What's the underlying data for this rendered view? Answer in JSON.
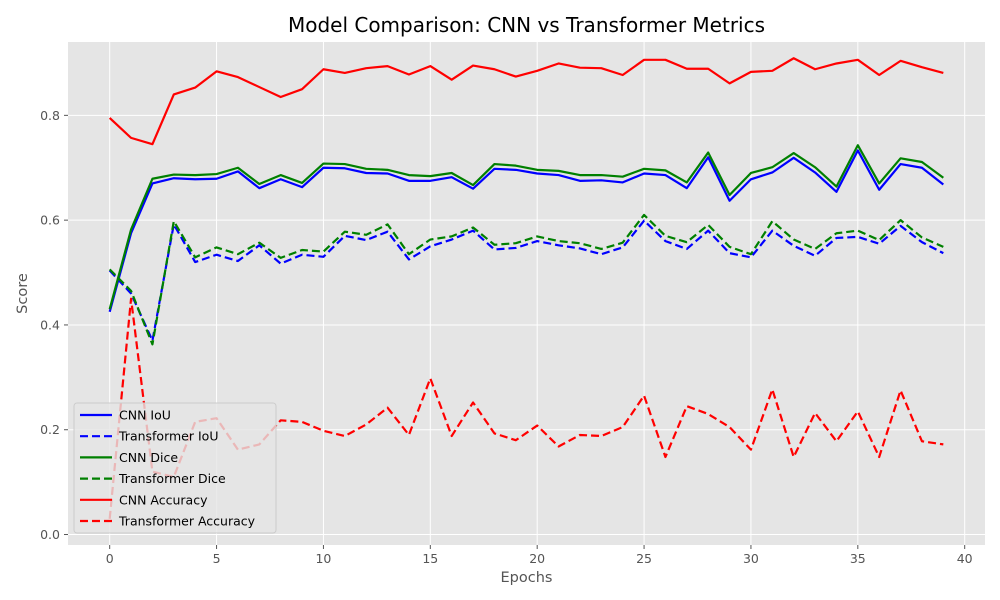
{
  "chart_data": {
    "type": "line",
    "title": "Model Comparison: CNN vs Transformer Metrics",
    "xlabel": "Epochs",
    "ylabel": "Score",
    "xlim": [
      -1.95,
      40.95
    ],
    "ylim": [
      -0.02,
      0.94
    ],
    "xticks": [
      0,
      5,
      10,
      15,
      20,
      25,
      30,
      35,
      40
    ],
    "yticks": [
      0.0,
      0.2,
      0.4,
      0.6,
      0.8
    ],
    "grid": true,
    "legend_position": "lower-left",
    "x": [
      0,
      1,
      2,
      3,
      4,
      5,
      6,
      7,
      8,
      9,
      10,
      11,
      12,
      13,
      14,
      15,
      16,
      17,
      18,
      19,
      20,
      21,
      22,
      23,
      24,
      25,
      26,
      27,
      28,
      29,
      30,
      31,
      32,
      33,
      34,
      35,
      36,
      37,
      38,
      39
    ],
    "series": [
      {
        "name": "CNN IoU",
        "color": "#0000ff",
        "style": "solid",
        "values": [
          0.425,
          0.575,
          0.67,
          0.68,
          0.678,
          0.679,
          0.693,
          0.661,
          0.678,
          0.663,
          0.7,
          0.699,
          0.69,
          0.689,
          0.675,
          0.675,
          0.682,
          0.66,
          0.698,
          0.696,
          0.689,
          0.686,
          0.675,
          0.676,
          0.672,
          0.689,
          0.686,
          0.661,
          0.72,
          0.637,
          0.678,
          0.691,
          0.719,
          0.691,
          0.654,
          0.733,
          0.658,
          0.707,
          0.7,
          0.668
        ]
      },
      {
        "name": "Transformer IoU",
        "color": "#0000ff",
        "style": "dashed",
        "values": [
          0.504,
          0.46,
          0.37,
          0.592,
          0.52,
          0.534,
          0.522,
          0.552,
          0.517,
          0.534,
          0.53,
          0.57,
          0.562,
          0.578,
          0.525,
          0.55,
          0.563,
          0.58,
          0.544,
          0.547,
          0.56,
          0.552,
          0.546,
          0.535,
          0.548,
          0.599,
          0.56,
          0.545,
          0.58,
          0.537,
          0.529,
          0.58,
          0.551,
          0.532,
          0.566,
          0.568,
          0.555,
          0.589,
          0.558,
          0.537
        ]
      },
      {
        "name": "CNN Dice",
        "color": "#008000",
        "style": "solid",
        "values": [
          0.43,
          0.582,
          0.679,
          0.687,
          0.686,
          0.688,
          0.7,
          0.669,
          0.686,
          0.671,
          0.708,
          0.707,
          0.698,
          0.696,
          0.686,
          0.684,
          0.69,
          0.667,
          0.707,
          0.704,
          0.696,
          0.694,
          0.686,
          0.686,
          0.683,
          0.698,
          0.695,
          0.672,
          0.729,
          0.648,
          0.69,
          0.701,
          0.728,
          0.701,
          0.664,
          0.743,
          0.67,
          0.718,
          0.711,
          0.681
        ]
      },
      {
        "name": "Transformer Dice",
        "color": "#008000",
        "style": "dashed",
        "values": [
          0.506,
          0.465,
          0.363,
          0.598,
          0.529,
          0.548,
          0.535,
          0.557,
          0.528,
          0.543,
          0.54,
          0.578,
          0.572,
          0.592,
          0.535,
          0.563,
          0.569,
          0.586,
          0.553,
          0.556,
          0.569,
          0.56,
          0.556,
          0.545,
          0.557,
          0.61,
          0.57,
          0.558,
          0.591,
          0.549,
          0.535,
          0.598,
          0.563,
          0.545,
          0.575,
          0.58,
          0.562,
          0.6,
          0.567,
          0.549
        ]
      },
      {
        "name": "CNN Accuracy",
        "color": "#ff0000",
        "style": "solid",
        "values": [
          0.795,
          0.757,
          0.745,
          0.84,
          0.853,
          0.884,
          0.873,
          0.854,
          0.835,
          0.85,
          0.888,
          0.881,
          0.89,
          0.894,
          0.878,
          0.894,
          0.868,
          0.895,
          0.888,
          0.874,
          0.885,
          0.899,
          0.891,
          0.89,
          0.877,
          0.906,
          0.906,
          0.889,
          0.889,
          0.861,
          0.883,
          0.885,
          0.909,
          0.888,
          0.899,
          0.906,
          0.877,
          0.904,
          0.892,
          0.881
        ]
      },
      {
        "name": "Transformer Accuracy",
        "color": "#ff0000",
        "style": "dashed",
        "values": [
          0.03,
          0.45,
          0.12,
          0.11,
          0.215,
          0.222,
          0.162,
          0.172,
          0.218,
          0.215,
          0.198,
          0.188,
          0.21,
          0.242,
          0.19,
          0.298,
          0.188,
          0.252,
          0.193,
          0.18,
          0.208,
          0.168,
          0.19,
          0.188,
          0.205,
          0.265,
          0.148,
          0.245,
          0.23,
          0.205,
          0.162,
          0.277,
          0.148,
          0.232,
          0.178,
          0.235,
          0.148,
          0.275,
          0.178,
          0.172
        ]
      }
    ]
  }
}
